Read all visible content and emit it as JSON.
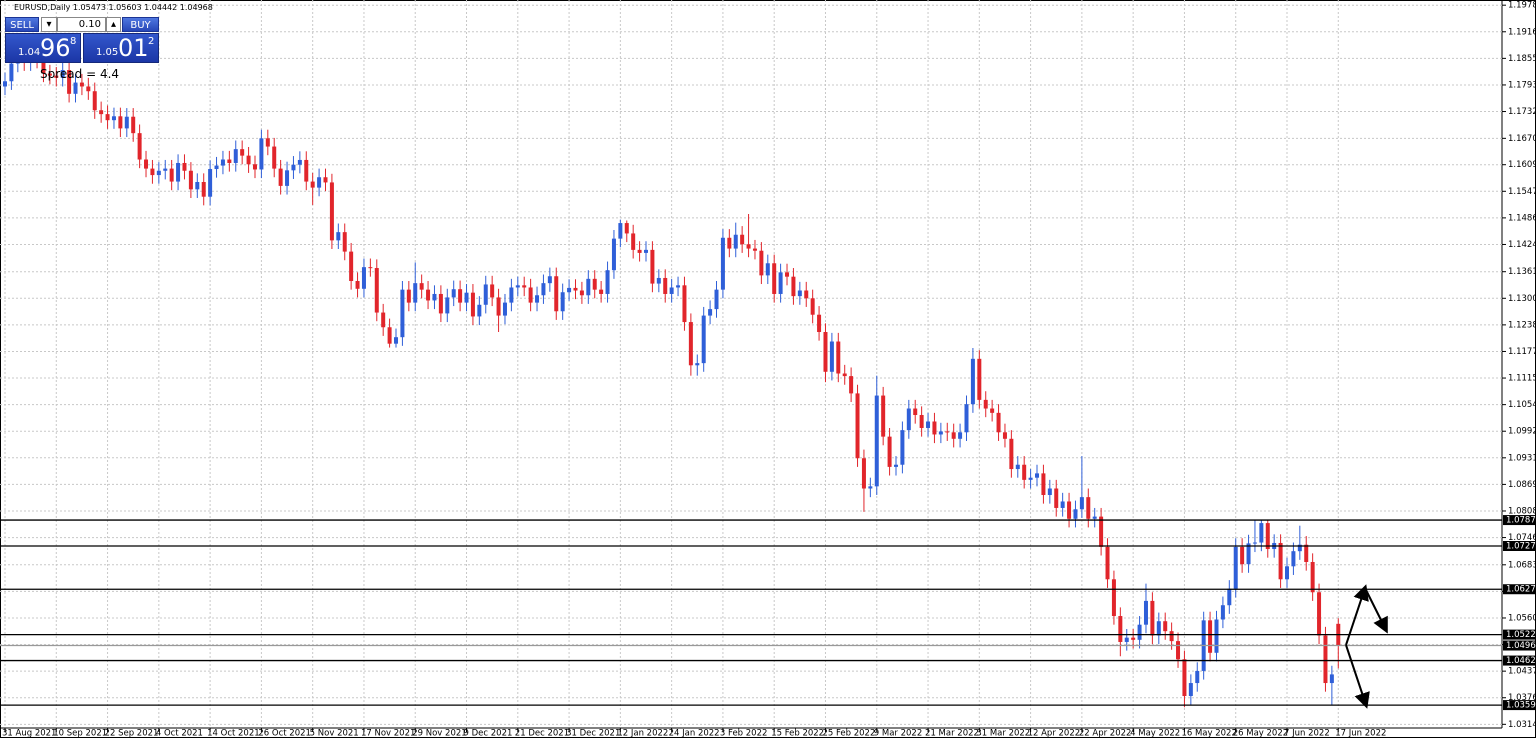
{
  "header": "EURUSD,Daily  1.05473 1.05603 1.04442 1.04968",
  "trade_panel": {
    "sell": "SELL",
    "buy": "BUY",
    "lot": "0.10",
    "sell_price": {
      "big": "1.04",
      "main": "96",
      "pip": "8"
    },
    "buy_price": {
      "big": "1.05",
      "main": "01",
      "pip": "2"
    },
    "spread": "Spread = 4.4"
  },
  "chart_data": {
    "type": "candlestick",
    "categories": [
      "31 Aug 2021",
      null,
      null,
      null,
      null,
      null,
      null,
      null,
      "10 Sep 2021",
      null,
      null,
      null,
      null,
      null,
      null,
      null,
      "22 Sep 2021",
      null,
      null,
      null,
      null,
      null,
      null,
      null,
      "4 Oct 2021",
      null,
      null,
      null,
      null,
      null,
      null,
      null,
      "14 Oct 2021",
      null,
      null,
      null,
      null,
      null,
      null,
      null,
      "26 Oct 2021",
      null,
      null,
      null,
      null,
      null,
      null,
      null,
      "5 Nov 2021",
      null,
      null,
      null,
      null,
      null,
      null,
      null,
      "17 Nov 2021",
      null,
      null,
      null,
      null,
      null,
      null,
      null,
      "29 Nov 2021",
      null,
      null,
      null,
      null,
      null,
      null,
      null,
      "9 Dec 2021",
      null,
      null,
      null,
      null,
      null,
      null,
      null,
      "21 Dec 2021",
      null,
      null,
      null,
      null,
      null,
      null,
      null,
      "31 Dec 2021",
      null,
      null,
      null,
      null,
      null,
      null,
      null,
      "12 Jan 2022",
      null,
      null,
      null,
      null,
      null,
      null,
      null,
      "24 Jan 2022",
      null,
      null,
      null,
      null,
      null,
      null,
      null,
      "3 Feb 2022",
      null,
      null,
      null,
      null,
      null,
      null,
      null,
      "15 Feb 2022",
      null,
      null,
      null,
      null,
      null,
      null,
      null,
      "25 Feb 2022",
      null,
      null,
      null,
      null,
      null,
      null,
      null,
      "9 Mar 2022",
      null,
      null,
      null,
      null,
      null,
      null,
      null,
      "21 Mar 2022",
      null,
      null,
      null,
      null,
      null,
      null,
      null,
      "31 Mar 2022",
      null,
      null,
      null,
      null,
      null,
      null,
      null,
      "12 Apr 2022",
      null,
      null,
      null,
      null,
      null,
      null,
      null,
      "22 Apr 2022",
      null,
      null,
      null,
      null,
      null,
      null,
      null,
      "4 May 2022",
      null,
      null,
      null,
      null,
      null,
      null,
      null,
      "16 May 2022",
      null,
      null,
      null,
      null,
      null,
      null,
      null,
      "26 May 2022",
      null,
      null,
      null,
      null,
      null,
      null,
      null,
      "7 Jun 2022",
      null,
      null,
      null,
      null,
      null,
      null,
      null,
      "17 Jun 2022"
    ],
    "open": [
      1.179,
      1.1802,
      1.1843,
      1.1875,
      1.1846,
      1.1878,
      1.1852,
      1.182,
      1.1815,
      1.181,
      1.1828,
      1.1773,
      1.1799,
      1.179,
      1.1779,
      1.1735,
      1.1726,
      1.1712,
      1.1721,
      1.1693,
      1.172,
      1.1682,
      1.1621,
      1.16,
      1.1585,
      1.1595,
      1.16,
      1.157,
      1.1613,
      1.1595,
      1.1552,
      1.1569,
      1.1535,
      1.1599,
      1.1607,
      1.1621,
      1.1613,
      1.1645,
      1.163,
      1.161,
      1.1598,
      1.167,
      1.1651,
      1.16,
      1.156,
      1.1596,
      1.1609,
      1.162,
      1.157,
      1.1556,
      1.158,
      1.1568,
      1.1434,
      1.1453,
      1.1408,
      1.134,
      1.1322,
      1.1372,
      1.137,
      1.1267,
      1.1233,
      1.1195,
      1.121,
      1.132,
      1.129,
      1.1335,
      1.132,
      1.1295,
      1.131,
      1.1265,
      1.1302,
      1.1321,
      1.129,
      1.1313,
      1.1258,
      1.1285,
      1.1332,
      1.1302,
      1.126,
      1.129,
      1.1325,
      1.133,
      1.1325,
      1.129,
      1.1307,
      1.1335,
      1.1351,
      1.127,
      1.1314,
      1.1324,
      1.1318,
      1.1307,
      1.1345,
      1.132,
      1.131,
      1.1365,
      1.1438,
      1.1474,
      1.145,
      1.1412,
      1.1405,
      1.1412,
      1.1334,
      1.1347,
      1.131,
      1.1325,
      1.133,
      1.1245,
      1.1145,
      1.115,
      1.126,
      1.1275,
      1.132,
      1.144,
      1.1415,
      1.1447,
      1.1425,
      1.1415,
      1.141,
      1.1353,
      1.1381,
      1.131,
      1.136,
      1.135,
      1.1305,
      1.1318,
      1.13,
      1.1262,
      1.1222,
      1.113,
      1.12,
      1.1126,
      1.112,
      1.108,
      1.093,
      1.086,
      1.0865,
      1.1075,
      1.098,
      1.091,
      1.0915,
      1.0995,
      1.1045,
      1.103,
      1.1,
      1.1015,
      1.0985,
      1.0992,
      1.099,
      1.0975,
      1.099,
      1.1055,
      1.116,
      1.1065,
      1.1045,
      1.1035,
      1.099,
      1.0975,
      1.0905,
      1.0915,
      1.088,
      1.0885,
      1.0895,
      1.0845,
      1.086,
      1.0815,
      1.083,
      1.079,
      1.0812,
      1.084,
      1.079,
      1.0795,
      1.0725,
      1.065,
      1.0565,
      1.0505,
      1.0515,
      1.051,
      1.0545,
      1.06,
      1.052,
      1.0553,
      1.053,
      1.0507,
      1.0465,
      1.038,
      1.041,
      1.0438,
      1.0555,
      1.048,
      1.0557,
      1.059,
      1.0628,
      1.0725,
      1.0685,
      1.0733,
      1.0735,
      1.078,
      1.072,
      1.0734,
      1.065,
      1.068,
      1.0715,
      1.073,
      1.069,
      1.062,
      1.052,
      1.041,
      1.0547
    ],
    "high": [
      1.1822,
      1.1863,
      1.1895,
      1.1895,
      1.1898,
      1.1898,
      1.1872,
      1.184,
      1.1835,
      1.1848,
      1.1848,
      1.1819,
      1.1819,
      1.181,
      1.1799,
      1.1755,
      1.1746,
      1.1741,
      1.1741,
      1.174,
      1.174,
      1.1702,
      1.1641,
      1.162,
      1.1615,
      1.162,
      1.162,
      1.1633,
      1.1633,
      1.1615,
      1.1589,
      1.1589,
      1.1619,
      1.1627,
      1.1641,
      1.1641,
      1.1665,
      1.1665,
      1.165,
      1.163,
      1.169,
      1.169,
      1.1671,
      1.162,
      1.1616,
      1.1629,
      1.164,
      1.164,
      1.159,
      1.16,
      1.16,
      1.1588,
      1.1473,
      1.1473,
      1.1428,
      1.136,
      1.1392,
      1.1392,
      1.139,
      1.1287,
      1.1253,
      1.123,
      1.134,
      1.134,
      1.1383,
      1.1355,
      1.134,
      1.133,
      1.133,
      1.1322,
      1.1341,
      1.1341,
      1.1333,
      1.1333,
      1.1305,
      1.1352,
      1.1352,
      1.1322,
      1.131,
      1.1345,
      1.135,
      1.135,
      1.1345,
      1.1327,
      1.1355,
      1.1371,
      1.1371,
      1.1334,
      1.1344,
      1.1344,
      1.1338,
      1.1365,
      1.1365,
      1.134,
      1.1385,
      1.1458,
      1.1482,
      1.148,
      1.147,
      1.1432,
      1.1432,
      1.1432,
      1.1367,
      1.1367,
      1.1345,
      1.135,
      1.135,
      1.1265,
      1.117,
      1.128,
      1.1295,
      1.134,
      1.146,
      1.146,
      1.1475,
      1.1467,
      1.1495,
      1.1435,
      1.143,
      1.1401,
      1.1401,
      1.138,
      1.138,
      1.137,
      1.1338,
      1.1338,
      1.132,
      1.1282,
      1.1242,
      1.122,
      1.122,
      1.1146,
      1.114,
      1.11,
      1.095,
      1.0885,
      1.1121,
      1.1095,
      1.1,
      1.0935,
      1.1015,
      1.1065,
      1.1065,
      1.105,
      1.1035,
      1.1035,
      1.1012,
      1.1012,
      1.101,
      1.101,
      1.1075,
      1.1185,
      1.118,
      1.1085,
      1.1065,
      1.1055,
      1.101,
      1.0995,
      1.0935,
      1.0935,
      1.0905,
      1.0915,
      1.0915,
      1.088,
      1.088,
      1.085,
      1.085,
      1.0832,
      1.0935,
      1.086,
      1.0815,
      1.0815,
      1.0745,
      1.067,
      1.0585,
      1.0535,
      1.0535,
      1.0565,
      1.064,
      1.062,
      1.0573,
      1.0573,
      1.055,
      1.0527,
      1.0485,
      1.043,
      1.0458,
      1.0575,
      1.0575,
      1.0577,
      1.061,
      1.0648,
      1.0745,
      1.0745,
      1.0753,
      1.0787,
      1.0787,
      1.0787,
      1.0754,
      1.0754,
      1.07,
      1.0735,
      1.0774,
      1.075,
      1.071,
      1.064,
      1.054,
      1.045,
      1.056
    ],
    "low": [
      1.177,
      1.1782,
      1.1823,
      1.1826,
      1.1826,
      1.1832,
      1.18,
      1.1795,
      1.179,
      1.179,
      1.1753,
      1.1753,
      1.177,
      1.1759,
      1.1715,
      1.1706,
      1.1692,
      1.1692,
      1.1673,
      1.1673,
      1.1662,
      1.1601,
      1.158,
      1.1565,
      1.1565,
      1.1575,
      1.155,
      1.155,
      1.1575,
      1.1532,
      1.1532,
      1.1515,
      1.1515,
      1.1579,
      1.1587,
      1.1593,
      1.1593,
      1.161,
      1.159,
      1.1578,
      1.1578,
      1.1631,
      1.158,
      1.154,
      1.154,
      1.1576,
      1.1589,
      1.155,
      1.1516,
      1.1536,
      1.1548,
      1.1414,
      1.1414,
      1.1388,
      1.132,
      1.1302,
      1.1302,
      1.135,
      1.1247,
      1.1213,
      1.1186,
      1.1186,
      1.119,
      1.127,
      1.127,
      1.13,
      1.1275,
      1.1275,
      1.1245,
      1.1245,
      1.1282,
      1.127,
      1.127,
      1.1238,
      1.1238,
      1.1265,
      1.1282,
      1.1222,
      1.124,
      1.127,
      1.1305,
      1.1305,
      1.127,
      1.127,
      1.1287,
      1.1315,
      1.125,
      1.125,
      1.1294,
      1.1298,
      1.1287,
      1.1287,
      1.13,
      1.129,
      1.129,
      1.1345,
      1.1418,
      1.143,
      1.1392,
      1.1385,
      1.1385,
      1.1314,
      1.1314,
      1.129,
      1.129,
      1.1305,
      1.1225,
      1.1121,
      1.1121,
      1.113,
      1.124,
      1.1255,
      1.13,
      1.1395,
      1.1395,
      1.1405,
      1.1395,
      1.139,
      1.1333,
      1.1333,
      1.129,
      1.129,
      1.133,
      1.1285,
      1.1285,
      1.128,
      1.1242,
      1.1202,
      1.1106,
      1.111,
      1.1106,
      1.11,
      1.106,
      1.091,
      1.0806,
      1.084,
      1.0845,
      1.096,
      1.089,
      1.089,
      1.0895,
      1.0975,
      1.101,
      1.098,
      1.098,
      1.0965,
      1.0965,
      1.097,
      1.0955,
      1.0955,
      1.097,
      1.1035,
      1.1045,
      1.1025,
      1.1015,
      1.097,
      1.0955,
      1.0885,
      1.0885,
      1.086,
      1.086,
      1.0865,
      1.0825,
      1.0825,
      1.0795,
      1.0795,
      1.077,
      1.077,
      1.0792,
      1.077,
      1.077,
      1.0705,
      1.063,
      1.0545,
      1.0472,
      1.0485,
      1.049,
      1.049,
      1.0525,
      1.05,
      1.05,
      1.051,
      1.0487,
      1.0445,
      1.0354,
      1.036,
      1.039,
      1.0418,
      1.046,
      1.046,
      1.0537,
      1.057,
      1.0608,
      1.0665,
      1.0665,
      1.0713,
      1.0715,
      1.07,
      1.07,
      1.063,
      1.063,
      1.066,
      1.0695,
      1.067,
      1.06,
      1.05,
      1.039,
      1.0359,
      1.0444
    ],
    "close": [
      1.1802,
      1.1843,
      1.1875,
      1.1846,
      1.1878,
      1.1852,
      1.182,
      1.1815,
      1.181,
      1.1828,
      1.1773,
      1.1799,
      1.179,
      1.1779,
      1.1735,
      1.1726,
      1.1712,
      1.1721,
      1.1693,
      1.172,
      1.1682,
      1.1621,
      1.16,
      1.1585,
      1.1595,
      1.16,
      1.157,
      1.1613,
      1.1595,
      1.1552,
      1.1569,
      1.1535,
      1.1599,
      1.1607,
      1.1621,
      1.1613,
      1.1645,
      1.163,
      1.161,
      1.1598,
      1.167,
      1.1651,
      1.16,
      1.156,
      1.1596,
      1.1609,
      1.162,
      1.157,
      1.1556,
      1.158,
      1.1568,
      1.1434,
      1.1453,
      1.1408,
      1.134,
      1.1322,
      1.1372,
      1.137,
      1.1267,
      1.1233,
      1.1195,
      1.121,
      1.132,
      1.129,
      1.1335,
      1.132,
      1.1295,
      1.131,
      1.1265,
      1.1302,
      1.1321,
      1.129,
      1.1313,
      1.1258,
      1.1285,
      1.1332,
      1.1302,
      1.126,
      1.129,
      1.1325,
      1.133,
      1.1325,
      1.129,
      1.1307,
      1.1335,
      1.1351,
      1.127,
      1.1314,
      1.1324,
      1.1318,
      1.1307,
      1.1345,
      1.132,
      1.131,
      1.1365,
      1.1438,
      1.1474,
      1.145,
      1.1412,
      1.1405,
      1.1412,
      1.1334,
      1.1347,
      1.131,
      1.1325,
      1.133,
      1.1245,
      1.1145,
      1.115,
      1.126,
      1.1275,
      1.132,
      1.144,
      1.1415,
      1.1447,
      1.1425,
      1.1415,
      1.141,
      1.1353,
      1.1381,
      1.131,
      1.136,
      1.135,
      1.1305,
      1.1318,
      1.13,
      1.1262,
      1.1222,
      1.113,
      1.12,
      1.1126,
      1.112,
      1.108,
      1.093,
      1.086,
      1.0865,
      1.1075,
      1.098,
      1.091,
      1.0915,
      1.0995,
      1.1045,
      1.103,
      1.1,
      1.1015,
      1.0985,
      1.0992,
      1.099,
      1.0975,
      1.099,
      1.1055,
      1.116,
      1.1065,
      1.1045,
      1.1035,
      1.099,
      1.0975,
      1.0905,
      1.0915,
      1.088,
      1.0885,
      1.0895,
      1.0845,
      1.086,
      1.0815,
      1.083,
      1.079,
      1.0812,
      1.084,
      1.079,
      1.0795,
      1.0725,
      1.065,
      1.0565,
      1.0505,
      1.0515,
      1.051,
      1.0545,
      1.06,
      1.052,
      1.0553,
      1.053,
      1.0507,
      1.0465,
      1.038,
      1.041,
      1.0438,
      1.0555,
      1.048,
      1.0557,
      1.059,
      1.0628,
      1.0725,
      1.0685,
      1.0733,
      1.0735,
      1.078,
      1.072,
      1.0734,
      1.065,
      1.068,
      1.0715,
      1.073,
      1.069,
      1.062,
      1.052,
      1.041,
      1.043,
      1.0497
    ],
    "up_color": "#2f5fd8",
    "down_color": "#e1252b",
    "ylim": [
      1.0306,
      1.199
    ],
    "yticks": [
      {
        "value": 1.1978,
        "label": "1.19780"
      },
      {
        "value": 1.19165,
        "label": "1.19165"
      },
      {
        "value": 1.1855,
        "label": "1.18550"
      },
      {
        "value": 1.17935,
        "label": "1.17935"
      },
      {
        "value": 1.1732,
        "label": "1.17320"
      },
      {
        "value": 1.167,
        "label": "1.16700"
      },
      {
        "value": 1.1609,
        "label": "1.16090"
      },
      {
        "value": 1.15475,
        "label": "1.15475"
      },
      {
        "value": 1.1486,
        "label": "1.14860"
      },
      {
        "value": 1.14245,
        "label": "1.14245"
      },
      {
        "value": 1.13615,
        "label": "1.13615"
      },
      {
        "value": 1.13,
        "label": "1.13000"
      },
      {
        "value": 1.12385,
        "label": "1.12385"
      },
      {
        "value": 1.1177,
        "label": "1.11770"
      },
      {
        "value": 1.11155,
        "label": "1.11155"
      },
      {
        "value": 1.1054,
        "label": "1.10540"
      },
      {
        "value": 1.09925,
        "label": "1.09925"
      },
      {
        "value": 1.0931,
        "label": "1.09310"
      },
      {
        "value": 1.08695,
        "label": "1.08695"
      },
      {
        "value": 1.0808,
        "label": "1.08080"
      },
      {
        "value": 1.07465,
        "label": "1.07465"
      },
      {
        "value": 1.06835,
        "label": "1.06835"
      },
      {
        "value": 1.0622,
        "label": "1.06220"
      },
      {
        "value": 1.05605,
        "label": "1.05605"
      },
      {
        "value": 1.0499,
        "label": "1.04990"
      },
      {
        "value": 1.04375,
        "label": "1.04375"
      },
      {
        "value": 1.0376,
        "label": "1.03760"
      },
      {
        "value": 1.03145,
        "label": "1.03145"
      }
    ],
    "grid": true,
    "levels": [
      {
        "value": 1.0787,
        "label": "1.07870"
      },
      {
        "value": 1.0727,
        "label": "1.07270"
      },
      {
        "value": 1.0627,
        "label": "1.06270"
      },
      {
        "value": 1.0522,
        "label": "1.05220"
      },
      {
        "value": 1.0462,
        "label": "1.04620"
      },
      {
        "value": 1.0359,
        "label": "1.03590"
      }
    ],
    "current_price": {
      "value": 1.04968,
      "label": "1.04968"
    }
  }
}
